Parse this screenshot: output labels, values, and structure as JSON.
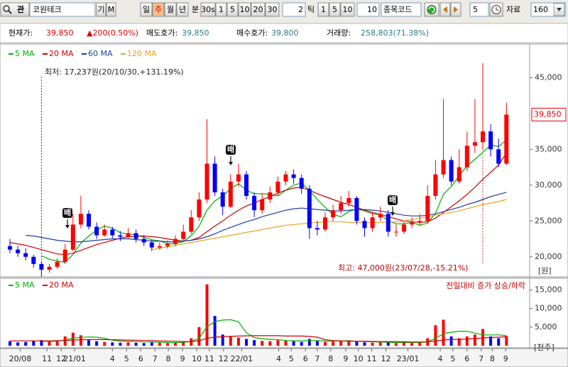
{
  "toolbar": {
    "side_buttons": [
      "관",
      "기",
      "M"
    ],
    "search": "코원테크",
    "tabs": [
      "일",
      "주",
      "월",
      "년"
    ],
    "selected_tab": 1,
    "minute_label": "분",
    "interval_buttons": [
      "30s",
      "1",
      "5",
      "10",
      "20",
      "30"
    ],
    "tick_count": "2",
    "tick_label": "틱",
    "tick_buttons": [
      "1",
      "5",
      "10"
    ],
    "tick_value": "10",
    "code_label": "종목코드",
    "count_value": "5",
    "data_label": "자료",
    "data_count": "160"
  },
  "info": {
    "price_label": "현재가:",
    "price": "39,850",
    "change": "▲200(0.50%)",
    "ask_label": "매도호가:",
    "ask": "39,850",
    "bid_label": "매수호가:",
    "bid": "39,800",
    "volume_label": "거래량:",
    "volume": "258,803(71.38%)"
  },
  "chart_data": [
    {
      "type": "candlestick",
      "up_color": "#ff0000",
      "down_color": "#0000ff",
      "ohlc": [
        [
          21500,
          22500,
          20500,
          21000
        ],
        [
          21000,
          21500,
          20000,
          20500
        ],
        [
          20500,
          21200,
          19500,
          20000
        ],
        [
          20000,
          20300,
          18500,
          19000
        ],
        [
          19000,
          19300,
          17237,
          18200
        ],
        [
          18200,
          19000,
          17800,
          18600
        ],
        [
          18600,
          19800,
          18300,
          19300
        ],
        [
          19300,
          21800,
          19000,
          21000
        ],
        [
          21000,
          26000,
          20800,
          24500
        ],
        [
          24500,
          28500,
          24000,
          26000
        ],
        [
          26000,
          26500,
          23800,
          24200
        ],
        [
          24200,
          24800,
          22500,
          23000
        ],
        [
          23000,
          24500,
          22800,
          23800
        ],
        [
          23800,
          24200,
          22600,
          23000
        ],
        [
          23000,
          23600,
          22200,
          22800
        ],
        [
          22800,
          24000,
          22500,
          23300
        ],
        [
          23300,
          23800,
          22000,
          22500
        ],
        [
          22500,
          23000,
          21500,
          22000
        ],
        [
          22000,
          22400,
          20800,
          21300
        ],
        [
          21300,
          22000,
          21000,
          21500
        ],
        [
          21500,
          22300,
          21200,
          21800
        ],
        [
          21800,
          23000,
          21500,
          22500
        ],
        [
          22500,
          24500,
          22200,
          23500
        ],
        [
          23500,
          26500,
          23200,
          25500
        ],
        [
          25500,
          29000,
          25000,
          28000
        ],
        [
          28000,
          39200,
          27500,
          33000
        ],
        [
          33000,
          34000,
          28500,
          29000
        ],
        [
          29000,
          29500,
          25800,
          27000
        ],
        [
          27000,
          31500,
          26800,
          30500
        ],
        [
          30500,
          33000,
          29800,
          31500
        ],
        [
          31500,
          32000,
          28000,
          28500
        ],
        [
          28500,
          29000,
          25500,
          26500
        ],
        [
          26500,
          28800,
          26000,
          28000
        ],
        [
          28000,
          29800,
          27500,
          29000
        ],
        [
          29000,
          31200,
          28500,
          30500
        ],
        [
          30500,
          32000,
          30000,
          31500
        ],
        [
          31500,
          32200,
          30200,
          31000
        ],
        [
          31000,
          31500,
          28800,
          29500
        ],
        [
          29500,
          30000,
          22500,
          24000
        ],
        [
          24000,
          25000,
          23000,
          23800
        ],
        [
          23800,
          26200,
          23500,
          25500
        ],
        [
          25500,
          27300,
          25000,
          26500
        ],
        [
          26500,
          28500,
          26000,
          27500
        ],
        [
          27500,
          29200,
          27000,
          28200
        ],
        [
          28200,
          28500,
          24500,
          25000
        ],
        [
          25000,
          25500,
          22800,
          24000
        ],
        [
          24000,
          26200,
          23500,
          25500
        ],
        [
          25500,
          27000,
          25000,
          26000
        ],
        [
          26000,
          26500,
          22800,
          23500
        ],
        [
          23500,
          24500,
          22800,
          23500
        ],
        [
          23500,
          25000,
          23200,
          24500
        ],
        [
          24500,
          25500,
          24000,
          24800
        ],
        [
          24800,
          26000,
          24300,
          25000
        ],
        [
          25000,
          30000,
          24800,
          28500
        ],
        [
          28500,
          33500,
          28000,
          31500
        ],
        [
          31500,
          42000,
          31000,
          33500
        ],
        [
          33500,
          34000,
          30000,
          30500
        ],
        [
          30500,
          35000,
          30200,
          32500
        ],
        [
          32500,
          37500,
          32000,
          35500
        ],
        [
          35500,
          42000,
          34500,
          36000
        ],
        [
          36000,
          47000,
          35000,
          37500
        ],
        [
          37500,
          38500,
          34000,
          35000
        ],
        [
          35000,
          36500,
          32500,
          33000
        ],
        [
          33000,
          41500,
          32800,
          39850
        ]
      ],
      "series": [
        {
          "name": "5 MA",
          "color": "#00b000",
          "values": [
            null,
            null,
            null,
            null,
            20140,
            19660,
            19420,
            19220,
            20320,
            21920,
            22900,
            23740,
            24300,
            24000,
            23360,
            23180,
            23080,
            22720,
            22380,
            22220,
            21820,
            21820,
            22120,
            22960,
            24260,
            26500,
            27800,
            28500,
            29500,
            30200,
            29300,
            28800,
            28800,
            28700,
            28500,
            29300,
            30000,
            30300,
            29300,
            28000,
            26900,
            25900,
            25600,
            26300,
            26700,
            26400,
            26000,
            25900,
            25000,
            24600,
            24600,
            24800,
            24400,
            24700,
            26100,
            28700,
            29800,
            31300,
            32700,
            33600,
            34600,
            35600,
            35400,
            36300
          ]
        },
        {
          "name": "20 MA",
          "color": "#d00000",
          "values": [
            22000,
            21800,
            21600,
            21300,
            21000,
            20700,
            20400,
            20300,
            20500,
            20900,
            21300,
            21700,
            22000,
            22300,
            22600,
            22800,
            22900,
            22900,
            22800,
            22700,
            22500,
            22300,
            22200,
            22300,
            22700,
            23500,
            24300,
            25000,
            25800,
            26500,
            27100,
            27500,
            28000,
            28400,
            28900,
            29300,
            29600,
            29700,
            29300,
            28800,
            28400,
            28000,
            27600,
            27300,
            26900,
            26500,
            26200,
            25900,
            25600,
            25300,
            25000,
            24900,
            24800,
            24900,
            25400,
            26200,
            27000,
            27800,
            28700,
            29700,
            30800,
            31800,
            32800,
            34500
          ]
        },
        {
          "name": "60 MA",
          "color": "#1f3f9f",
          "values": [
            null,
            null,
            23000,
            22900,
            22700,
            22500,
            22300,
            22200,
            22100,
            22100,
            22200,
            22300,
            22400,
            22500,
            22500,
            22500,
            22400,
            22300,
            22200,
            22200,
            22100,
            22100,
            22200,
            22300,
            22500,
            22800,
            23200,
            23700,
            24100,
            24500,
            24900,
            25200,
            25600,
            25900,
            26200,
            26500,
            26700,
            26800,
            26700,
            26600,
            26500,
            26400,
            26400,
            26500,
            26600,
            26600,
            26500,
            26400,
            26200,
            26000,
            25800,
            25700,
            25700,
            25800,
            26000,
            26300,
            26600,
            26900,
            27300,
            27600,
            28000,
            28400,
            28700,
            29000
          ]
        },
        {
          "name": "120 MA",
          "color": "#f0a020",
          "values": [
            null,
            null,
            null,
            null,
            null,
            null,
            null,
            null,
            null,
            null,
            null,
            null,
            null,
            null,
            null,
            null,
            null,
            null,
            21000,
            21200,
            21400,
            21600,
            21800,
            22000,
            22200,
            22400,
            22600,
            22800,
            23000,
            23200,
            23400,
            23600,
            23800,
            24000,
            24200,
            24400,
            24500,
            24600,
            24700,
            24800,
            24900,
            24900,
            24900,
            24800,
            24800,
            24800,
            24800,
            24800,
            24800,
            24900,
            25000,
            25200,
            25400,
            25600,
            25800,
            26000,
            26200,
            26400,
            26700,
            27000,
            27300,
            27500,
            27700,
            28000
          ]
        }
      ],
      "ylim": [
        17400,
        49400
      ],
      "yticks": [
        {
          "value": 20000,
          "label": "20,000"
        },
        {
          "value": 25000,
          "label": "25,000"
        },
        {
          "value": 30000,
          "label": "30,000"
        },
        {
          "value": 35000,
          "label": "35,000"
        },
        {
          "value": 45000,
          "label": "45,000"
        }
      ],
      "last_price": {
        "value": 39850,
        "label": "39,850"
      },
      "unit_label": "[원]",
      "low_annotation": "최저: 17,237원(20/10/30,+131.19%)",
      "high_annotation": "최고: 47,000원(23/07/28,-15.21%)",
      "markers": [
        "배",
        "배",
        "배"
      ],
      "grid": false
    },
    {
      "type": "bar",
      "values": [
        1200,
        900,
        1000,
        1300,
        1500,
        1100,
        1400,
        2500,
        3500,
        2800,
        1500,
        1200,
        1000,
        900,
        800,
        900,
        800,
        700,
        900,
        800,
        700,
        900,
        1200,
        2000,
        5000,
        16500,
        8000,
        3000,
        2500,
        2200,
        1800,
        1500,
        1300,
        1200,
        1500,
        1400,
        1200,
        1000,
        1800,
        1300,
        1000,
        1100,
        1200,
        1300,
        1100,
        900,
        800,
        900,
        1000,
        700,
        800,
        700,
        900,
        2000,
        5500,
        7000,
        2500,
        2000,
        2500,
        3000,
        4500,
        2500,
        2000,
        2600
      ],
      "series": [
        {
          "name": "5 MA",
          "color": "#00b000",
          "values": [
            null,
            null,
            null,
            null,
            1180,
            1160,
            1260,
            1560,
            2000,
            2260,
            2340,
            2300,
            2000,
            1480,
            1240,
            1160,
            1080,
            1020,
            1000,
            960,
            860,
            840,
            900,
            1120,
            1960,
            5100,
            6500,
            6900,
            7000,
            6440,
            3500,
            2200,
            1900,
            1700,
            1660,
            1380,
            1320,
            1260,
            1380,
            1340,
            1260,
            1240,
            1280,
            1340,
            1200,
            1120,
            1060,
            1000,
            940,
            860,
            840,
            820,
            820,
            1060,
            1980,
            3220,
            3620,
            3900,
            3900,
            3400,
            2900,
            2900,
            2900,
            2700
          ]
        },
        {
          "name": "20 MA",
          "color": "#d00000",
          "values": [
            1300,
            1300,
            1300,
            1300,
            1300,
            1300,
            1350,
            1400,
            1500,
            1600,
            1650,
            1650,
            1650,
            1600,
            1550,
            1500,
            1450,
            1400,
            1350,
            1300,
            1250,
            1200,
            1100,
            1100,
            1300,
            2000,
            2300,
            2400,
            2500,
            2600,
            2650,
            2700,
            2700,
            2700,
            2700,
            2600,
            2600,
            2600,
            2500,
            2300,
            1600,
            1400,
            1300,
            1250,
            1200,
            1200,
            1150,
            1100,
            1100,
            1100,
            1050,
            1000,
            1000,
            1050,
            1250,
            1550,
            1650,
            1700,
            1800,
            1900,
            2100,
            2200,
            2300,
            2400
          ]
        }
      ],
      "ylim": [
        0,
        17000
      ],
      "yticks": [
        {
          "value": 5000,
          "label": "5,000"
        },
        {
          "value": 10000,
          "label": "10,000"
        },
        {
          "value": 15000,
          "label": "15,000"
        }
      ],
      "unit_label": "[천주]",
      "note": "전일대비 증가 상승/하락",
      "xticks": [
        {
          "value": 1.3,
          "label": "20/08"
        },
        {
          "value": 4.7,
          "label": "11"
        },
        {
          "value": 6.5,
          "label": "12"
        },
        {
          "value": 8.2,
          "label": "21/01"
        },
        {
          "value": 13.0,
          "label": "4"
        },
        {
          "value": 14.8,
          "label": "5"
        },
        {
          "value": 16.6,
          "label": "6"
        },
        {
          "value": 18.4,
          "label": "7"
        },
        {
          "value": 20.1,
          "label": "8"
        },
        {
          "value": 21.9,
          "label": "9"
        },
        {
          "value": 23.7,
          "label": "10"
        },
        {
          "value": 25.3,
          "label": "11"
        },
        {
          "value": 27.1,
          "label": "12"
        },
        {
          "value": 29.4,
          "label": "22/01"
        },
        {
          "value": 34.1,
          "label": "4"
        },
        {
          "value": 35.7,
          "label": "5"
        },
        {
          "value": 37.5,
          "label": "6"
        },
        {
          "value": 39.0,
          "label": "7"
        },
        {
          "value": 40.7,
          "label": "8"
        },
        {
          "value": 42.6,
          "label": "9"
        },
        {
          "value": 44.2,
          "label": "10"
        },
        {
          "value": 45.9,
          "label": "11"
        },
        {
          "value": 47.7,
          "label": "12"
        },
        {
          "value": 50.5,
          "label": "23/01"
        },
        {
          "value": 54.6,
          "label": "4"
        },
        {
          "value": 56.2,
          "label": "5"
        },
        {
          "value": 58.0,
          "label": "6"
        },
        {
          "value": 59.8,
          "label": "7"
        },
        {
          "value": 61.2,
          "label": "8"
        },
        {
          "value": 62.9,
          "label": "9"
        }
      ]
    }
  ]
}
